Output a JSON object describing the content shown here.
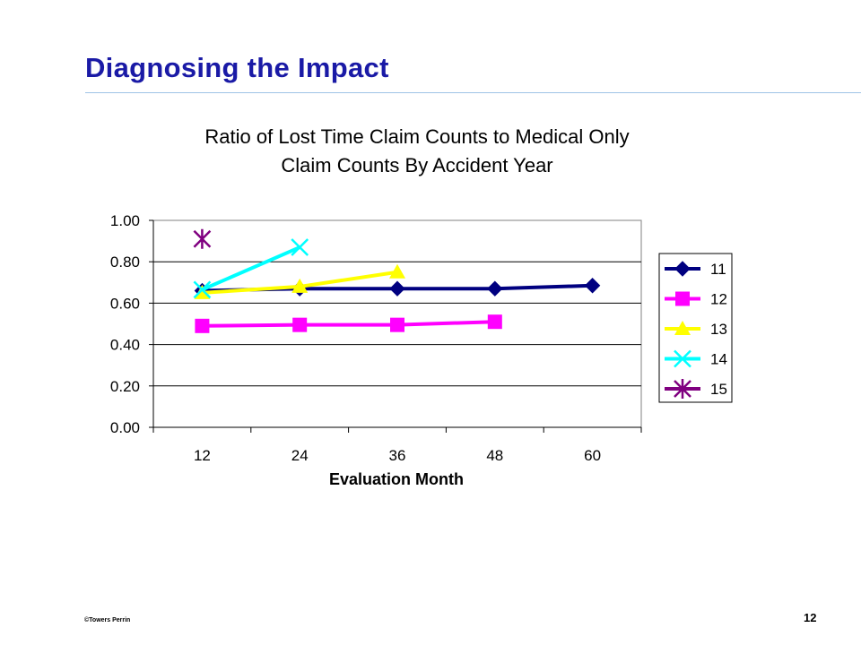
{
  "slide": {
    "title": "Diagnosing the Impact",
    "footer_left": "©Towers Perrin",
    "page_number": "12"
  },
  "chart_data": {
    "type": "line",
    "title_lines": [
      "Ratio of Lost Time Claim Counts to Medical Only",
      "Claim Counts By Accident Year"
    ],
    "xlabel": "Evaluation Month",
    "ylabel": "",
    "categories": [
      "12",
      "24",
      "36",
      "48",
      "60"
    ],
    "ylim": [
      0,
      1.0
    ],
    "yticks": [
      "0.00",
      "0.20",
      "0.40",
      "0.60",
      "0.80",
      "1.00"
    ],
    "grid": true,
    "legend_position": "right",
    "series": [
      {
        "name": "11",
        "color": "#000080",
        "marker": "diamond",
        "values": [
          0.66,
          0.67,
          0.67,
          0.67,
          0.685
        ]
      },
      {
        "name": "12",
        "color": "#ff00ff",
        "marker": "square",
        "values": [
          0.49,
          0.495,
          0.495,
          0.51,
          null
        ]
      },
      {
        "name": "13",
        "color": "#ffff00",
        "marker": "triangle",
        "values": [
          0.65,
          0.68,
          0.75,
          null,
          null
        ]
      },
      {
        "name": "14",
        "color": "#00ffff",
        "marker": "x",
        "values": [
          0.665,
          0.87,
          null,
          null,
          null
        ]
      },
      {
        "name": "15",
        "color": "#800080",
        "marker": "star",
        "values": [
          0.91,
          null,
          null,
          null,
          null
        ]
      }
    ]
  }
}
